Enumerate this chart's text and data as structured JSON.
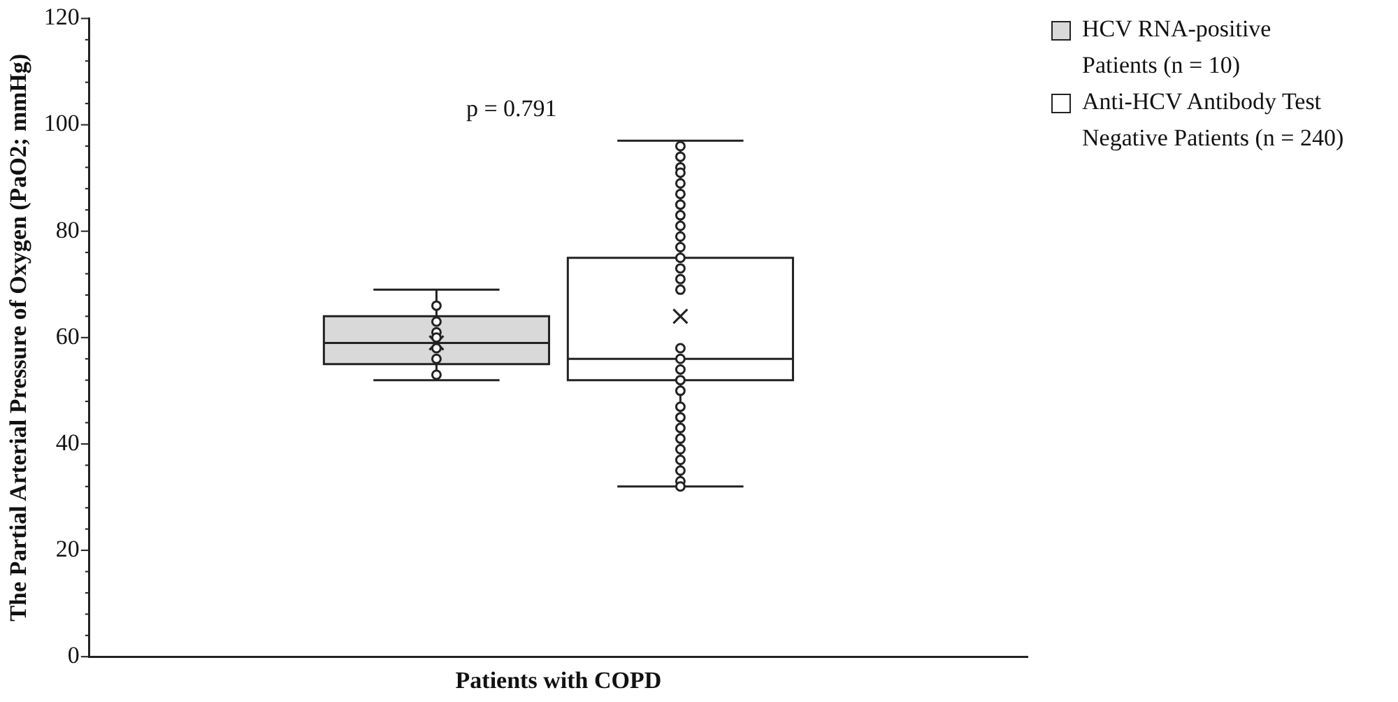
{
  "chart_data": {
    "type": "box",
    "xlabel": "Patients with COPD",
    "ylabel": "The Partial Arterial Pressure of Oxygen (PaO2; mmHg)",
    "categories": [
      null
    ],
    "ylim": [
      0,
      120
    ],
    "yticks": [
      0,
      {
        "value": 4,
        "label": null
      },
      {
        "value": 8,
        "label": null
      },
      {
        "value": 12,
        "label": null
      },
      {
        "value": 16,
        "label": null
      },
      20,
      {
        "value": 24,
        "label": null
      },
      {
        "value": 28,
        "label": null
      },
      {
        "value": 32,
        "label": null
      },
      {
        "value": 36,
        "label": null
      },
      40,
      {
        "value": 44,
        "label": null
      },
      {
        "value": 48,
        "label": null
      },
      {
        "value": 52,
        "label": null
      },
      {
        "value": 56,
        "label": null
      },
      60,
      {
        "value": 64,
        "label": null
      },
      {
        "value": 68,
        "label": null
      },
      {
        "value": 72,
        "label": null
      },
      {
        "value": 76,
        "label": null
      },
      80,
      {
        "value": 84,
        "label": null
      },
      {
        "value": 88,
        "label": null
      },
      {
        "value": 92,
        "label": null
      },
      {
        "value": 96,
        "label": null
      },
      100,
      {
        "value": 104,
        "label": null
      },
      {
        "value": 108,
        "label": null
      },
      {
        "value": 112,
        "label": null
      },
      {
        "value": 116,
        "label": null
      },
      120
    ],
    "grid": false,
    "legend": "top right",
    "marker": "circle",
    "annotations": [
      "p = 0.791"
    ],
    "series": [
      {
        "name": "HCV RNA-positive Patients (n = 10)",
        "color": "#d9d9d9",
        "boxes": [
          {
            "low": 52,
            "q1": 55,
            "median": 59,
            "q3": 64,
            "high": 69,
            "mean": 59,
            "outliers": [
              66,
              63,
              61,
              60,
              58,
              56,
              53
            ]
          }
        ]
      },
      {
        "name": "Anti-HCV Antibody Test Negative Patients (n = 240)",
        "color": "#ffffff",
        "boxes": [
          {
            "low": 32,
            "q1": 52,
            "median": 56,
            "q3": 75,
            "high": 97,
            "mean": 64,
            "outliers": [
              96,
              94,
              92,
              91,
              89,
              87,
              85,
              83,
              81,
              79,
              77,
              75,
              73,
              71,
              69,
              58,
              56,
              54,
              52,
              50,
              47,
              45,
              43,
              41,
              39,
              37,
              35,
              33,
              32
            ]
          }
        ]
      }
    ]
  }
}
